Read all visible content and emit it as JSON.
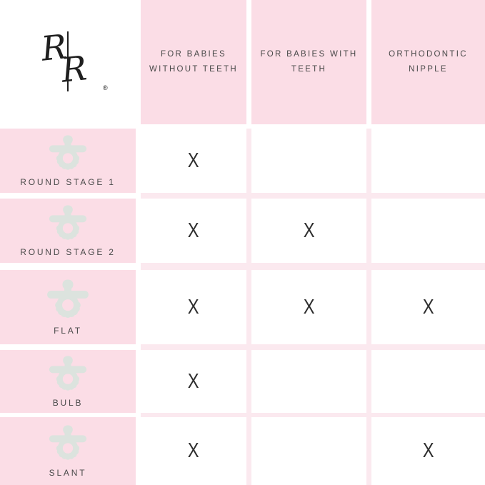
{
  "brand": {
    "monogram_letters": [
      "R",
      "R"
    ],
    "registered_mark": "®"
  },
  "chart_data": {
    "type": "table",
    "title": "",
    "columns": [
      "FOR BABIES WITHOUT TEETH",
      "FOR BABIES WITH TEETH",
      "ORTHODONTIC NIPPLE"
    ],
    "rows": [
      "ROUND STAGE 1",
      "ROUND STAGE 2",
      "FLAT",
      "BULB",
      "SLANT"
    ],
    "marks": [
      [
        true,
        false,
        false
      ],
      [
        true,
        true,
        false
      ],
      [
        true,
        true,
        true
      ],
      [
        true,
        false,
        false
      ],
      [
        true,
        false,
        true
      ]
    ],
    "mark_symbol": "X",
    "row_icon": "pacifier-icon",
    "legend_position": "none",
    "grid": "pink-gutter-matrix"
  },
  "colors": {
    "header_pink": "#fbdde6",
    "gutter_pink": "#fbe9ef",
    "text": "#4a4a4a",
    "mark": "#2e2e2e",
    "pacifier": "#dce3de"
  }
}
